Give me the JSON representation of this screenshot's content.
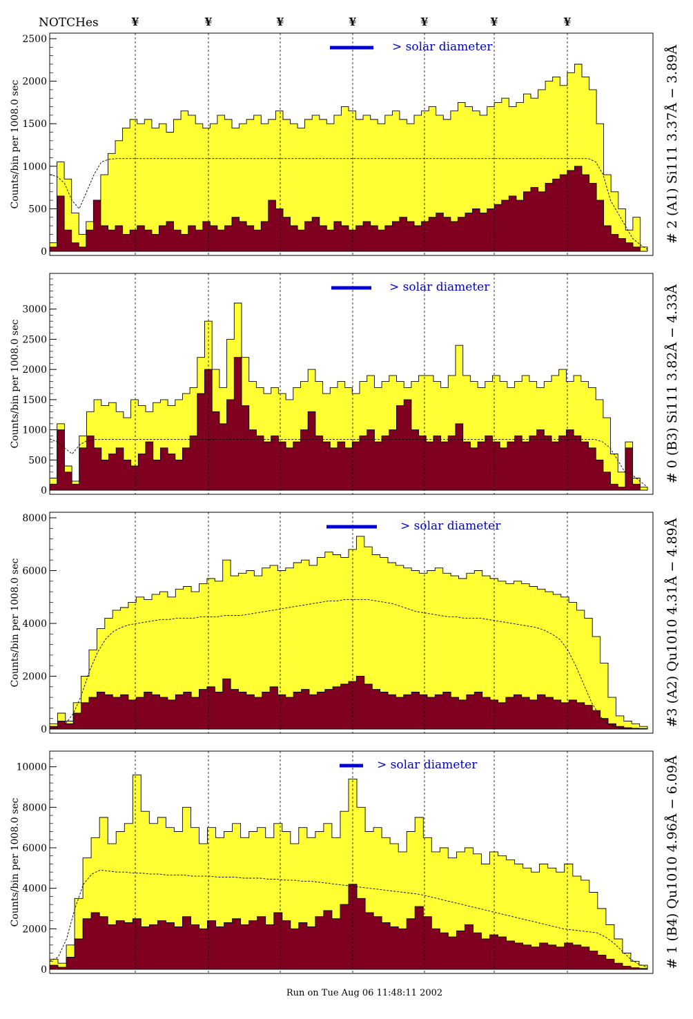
{
  "header": {
    "label": "NOTCHes",
    "notch_glyph": "¥"
  },
  "notches_x": [
    0,
    1,
    2,
    3,
    4,
    5,
    6
  ],
  "footer": {
    "run_text": "Run on Tue Aug 06 11:48:11 2002"
  },
  "colors": {
    "fill_total": "#ffff33",
    "fill_subset": "#800020",
    "annotation": "#0000cc",
    "solar_bar": "#0000dd"
  },
  "chart_data": [
    {
      "type": "area",
      "title": "# 2 (A1) Si111  3.37Å − 3.89Å",
      "ylabel": "Counts/bin per   1008.0 sec",
      "ylim": [
        0,
        2500
      ],
      "yticks": [
        0,
        500,
        1000,
        1500,
        2000,
        2500
      ],
      "solar_label": "> solar diameter",
      "series": [
        {
          "values": [
            100,
            1050,
            850,
            450,
            200,
            350,
            600,
            900,
            1150,
            1300,
            1450,
            1550,
            1500,
            1550,
            1450,
            1500,
            1400,
            1550,
            1650,
            1600,
            1500,
            1450,
            1500,
            1600,
            1550,
            1450,
            1500,
            1550,
            1600,
            1500,
            1550,
            1650,
            1550,
            1500,
            1450,
            1550,
            1600,
            1550,
            1500,
            1600,
            1700,
            1650,
            1550,
            1600,
            1550,
            1500,
            1600,
            1650,
            1550,
            1500,
            1600,
            1650,
            1700,
            1600,
            1550,
            1650,
            1750,
            1700,
            1650,
            1600,
            1700,
            1750,
            1800,
            1700,
            1750,
            1850,
            1800,
            1900,
            2000,
            2050,
            1950,
            2100,
            2200,
            2050,
            1900,
            1500,
            900,
            700,
            500,
            250,
            400,
            50
          ]
        },
        {
          "values": [
            50,
            650,
            250,
            100,
            50,
            250,
            600,
            300,
            250,
            300,
            200,
            250,
            300,
            250,
            200,
            300,
            350,
            250,
            200,
            300,
            250,
            350,
            300,
            250,
            300,
            400,
            350,
            300,
            250,
            350,
            600,
            500,
            400,
            300,
            250,
            350,
            400,
            300,
            250,
            350,
            300,
            250,
            300,
            350,
            300,
            250,
            300,
            350,
            400,
            350,
            300,
            350,
            400,
            450,
            400,
            350,
            400,
            450,
            500,
            450,
            500,
            550,
            600,
            650,
            600,
            700,
            750,
            700,
            800,
            850,
            900,
            950,
            1000,
            900,
            800,
            600,
            300,
            200,
            150,
            100,
            50,
            0
          ]
        }
      ],
      "reference": [
        900,
        880,
        800,
        600,
        500,
        700,
        900,
        1050,
        1080,
        1090,
        1090,
        1090,
        1090,
        1090,
        1090,
        1090,
        1090,
        1090,
        1090,
        1090,
        1090,
        1090,
        1090,
        1090,
        1090,
        1090,
        1090,
        1090,
        1090,
        1090,
        1090,
        1090,
        1090,
        1090,
        1090,
        1090,
        1090,
        1090,
        1090,
        1090,
        1090,
        1090,
        1090,
        1090,
        1090,
        1090,
        1090,
        1090,
        1090,
        1090,
        1090,
        1090,
        1090,
        1090,
        1090,
        1090,
        1090,
        1090,
        1090,
        1090,
        1090,
        1090,
        1090,
        1090,
        1090,
        1090,
        1090,
        1090,
        1090,
        1090,
        1090,
        1090,
        1090,
        1090,
        1050,
        900,
        600,
        450,
        300,
        150,
        80,
        20
      ]
    },
    {
      "type": "area",
      "title": "# 0 (B3) Si111  3.82Å − 4.33Å",
      "ylabel": "Counts/bin per   1008.0 sec",
      "ylim": [
        0,
        3500
      ],
      "yticks": [
        0,
        500,
        1000,
        1500,
        2000,
        2500,
        3000
      ],
      "solar_label": "> solar diameter",
      "series": [
        {
          "values": [
            200,
            1100,
            400,
            150,
            900,
            1300,
            1500,
            1400,
            1450,
            1300,
            1200,
            1500,
            1400,
            1300,
            1450,
            1500,
            1400,
            1500,
            1600,
            1700,
            2200,
            2800,
            2000,
            1700,
            2500,
            3100,
            2200,
            1800,
            1700,
            1600,
            1700,
            1600,
            1500,
            1700,
            1800,
            2000,
            1800,
            1600,
            1700,
            1800,
            1700,
            1600,
            1800,
            1900,
            1700,
            1800,
            1900,
            1800,
            1700,
            1800,
            1900,
            1900,
            1800,
            1700,
            1900,
            2400,
            1900,
            1800,
            1700,
            1800,
            1900,
            1800,
            1700,
            1800,
            1900,
            1800,
            1700,
            1800,
            1900,
            2000,
            1800,
            1900,
            1800,
            1700,
            1500,
            1200,
            600,
            300,
            800,
            200,
            50
          ]
        },
        {
          "values": [
            100,
            1000,
            300,
            100,
            700,
            900,
            700,
            500,
            600,
            700,
            500,
            400,
            600,
            800,
            500,
            700,
            600,
            500,
            700,
            900,
            1600,
            2000,
            1300,
            1100,
            1500,
            2200,
            1400,
            1000,
            900,
            800,
            900,
            800,
            700,
            800,
            1000,
            1300,
            900,
            800,
            700,
            800,
            700,
            800,
            900,
            1000,
            800,
            900,
            1000,
            1400,
            1500,
            1000,
            900,
            800,
            900,
            800,
            900,
            1100,
            800,
            700,
            800,
            900,
            800,
            700,
            800,
            900,
            800,
            900,
            1000,
            900,
            800,
            900,
            1000,
            900,
            800,
            700,
            500,
            300,
            100,
            50,
            700,
            100,
            0
          ]
        }
      ],
      "reference": [
        850,
        800,
        700,
        600,
        750,
        820,
        840,
        840,
        840,
        840,
        840,
        840,
        840,
        840,
        840,
        840,
        840,
        840,
        840,
        840,
        840,
        840,
        840,
        840,
        840,
        840,
        840,
        840,
        840,
        840,
        840,
        840,
        840,
        840,
        840,
        840,
        840,
        840,
        840,
        840,
        840,
        840,
        840,
        840,
        840,
        840,
        840,
        840,
        840,
        840,
        840,
        840,
        840,
        840,
        840,
        840,
        840,
        840,
        840,
        840,
        840,
        840,
        840,
        840,
        840,
        840,
        840,
        840,
        840,
        840,
        840,
        840,
        840,
        840,
        800,
        700,
        500,
        300,
        250,
        150,
        50
      ]
    },
    {
      "type": "area",
      "title": "#3 (A2) Qu1010  4.31Å − 4.89Å",
      "ylabel": "Counts/bin per   1008.0 sec",
      "ylim": [
        0,
        8000
      ],
      "yticks": [
        0,
        2000,
        4000,
        6000,
        8000
      ],
      "solar_label": "> solar diameter",
      "series": [
        {
          "values": [
            200,
            600,
            300,
            1000,
            2000,
            3000,
            3800,
            4200,
            4500,
            4600,
            4800,
            5000,
            4900,
            5100,
            5200,
            5000,
            5300,
            5400,
            5200,
            5500,
            5700,
            5600,
            6400,
            5800,
            5900,
            6000,
            5800,
            6100,
            6200,
            6000,
            6100,
            6300,
            6400,
            6200,
            6500,
            6700,
            6600,
            6500,
            6800,
            7300,
            6900,
            6600,
            6500,
            6300,
            6200,
            6100,
            6000,
            5900,
            6000,
            6100,
            5900,
            5800,
            5700,
            5900,
            6000,
            5800,
            5700,
            5600,
            5500,
            5600,
            5500,
            5400,
            5300,
            5200,
            5100,
            5000,
            4800,
            4500,
            4200,
            3500,
            2500,
            1200,
            500,
            300,
            200,
            100
          ]
        },
        {
          "values": [
            100,
            300,
            200,
            600,
            1000,
            1200,
            1400,
            1300,
            1200,
            1300,
            1100,
            1200,
            1400,
            1300,
            1200,
            1100,
            1300,
            1400,
            1200,
            1500,
            1600,
            1400,
            1900,
            1500,
            1400,
            1300,
            1200,
            1400,
            1600,
            1300,
            1200,
            1400,
            1500,
            1300,
            1400,
            1500,
            1600,
            1700,
            1800,
            2000,
            1700,
            1500,
            1400,
            1300,
            1200,
            1300,
            1400,
            1300,
            1200,
            1300,
            1400,
            1200,
            1100,
            1300,
            1400,
            1200,
            1100,
            1000,
            1200,
            1300,
            1200,
            1100,
            1300,
            1200,
            1100,
            1000,
            1100,
            1000,
            900,
            700,
            400,
            200,
            100,
            50,
            30,
            20
          ]
        }
      ],
      "reference": [
        0,
        50,
        200,
        600,
        1300,
        2200,
        2900,
        3400,
        3700,
        3850,
        3950,
        4000,
        4050,
        4100,
        4150,
        4150,
        4200,
        4200,
        4200,
        4250,
        4250,
        4250,
        4300,
        4300,
        4300,
        4350,
        4400,
        4450,
        4500,
        4550,
        4600,
        4650,
        4700,
        4750,
        4800,
        4850,
        4850,
        4900,
        4900,
        4900,
        4900,
        4850,
        4800,
        4750,
        4650,
        4550,
        4450,
        4400,
        4350,
        4300,
        4250,
        4250,
        4200,
        4200,
        4200,
        4150,
        4100,
        4050,
        4000,
        3950,
        3900,
        3850,
        3750,
        3600,
        3400,
        3000,
        2400,
        1700,
        1000,
        500,
        200,
        80,
        30,
        10,
        5,
        0
      ]
    },
    {
      "type": "area",
      "title": "# 1 (B4) Qu1010 4.96Å − 6.09Å",
      "ylabel": "Counts/bin per   1008.0 sec",
      "ylim": [
        0,
        10500
      ],
      "yticks": [
        0,
        2000,
        4000,
        6000,
        8000,
        10000
      ],
      "solar_label": "> solar diameter",
      "series": [
        {
          "values": [
            500,
            300,
            1200,
            3500,
            5500,
            6500,
            7500,
            6200,
            6800,
            7200,
            9600,
            7800,
            7200,
            7500,
            7000,
            6800,
            8000,
            7000,
            6200,
            7000,
            6500,
            6800,
            7200,
            6500,
            6800,
            7000,
            6500,
            7200,
            6800,
            6200,
            7000,
            6500,
            6800,
            7200,
            6500,
            7800,
            9400,
            8000,
            6800,
            7000,
            6500,
            6200,
            5800,
            6800,
            7500,
            6500,
            5800,
            6000,
            5500,
            5800,
            6000,
            5700,
            5200,
            5800,
            5600,
            5400,
            5200,
            5000,
            4800,
            5200,
            5000,
            4800,
            5200,
            4600,
            4400,
            3800,
            3000,
            2200,
            1500,
            800,
            400,
            200
          ]
        },
        {
          "values": [
            200,
            100,
            600,
            1500,
            2500,
            2800,
            2600,
            2200,
            2400,
            2300,
            2500,
            2100,
            2200,
            2400,
            2300,
            2100,
            2600,
            2200,
            2000,
            2400,
            2100,
            2300,
            2500,
            2200,
            2400,
            2600,
            2200,
            2800,
            2400,
            2000,
            2300,
            2100,
            2600,
            2900,
            2500,
            3200,
            4200,
            3500,
            2800,
            2600,
            2300,
            2100,
            2000,
            2500,
            3100,
            2600,
            2000,
            1800,
            1600,
            1900,
            2200,
            1800,
            1500,
            1700,
            1600,
            1400,
            1300,
            1200,
            1100,
            1300,
            1200,
            1100,
            1300,
            1200,
            1100,
            900,
            700,
            500,
            300,
            150,
            80,
            40
          ]
        }
      ],
      "reference": [
        400,
        600,
        1500,
        3000,
        4200,
        4700,
        4900,
        4850,
        4800,
        4800,
        4750,
        4750,
        4700,
        4700,
        4650,
        4650,
        4650,
        4600,
        4600,
        4600,
        4550,
        4550,
        4550,
        4500,
        4500,
        4500,
        4450,
        4450,
        4400,
        4400,
        4350,
        4350,
        4300,
        4250,
        4200,
        4150,
        4100,
        4050,
        4000,
        3950,
        3900,
        3850,
        3800,
        3750,
        3700,
        3600,
        3500,
        3400,
        3300,
        3200,
        3100,
        3000,
        2900,
        2800,
        2700,
        2600,
        2500,
        2400,
        2300,
        2200,
        2100,
        2000,
        1950,
        1900,
        1850,
        1800,
        1600,
        1300,
        900,
        500,
        250,
        100
      ]
    }
  ]
}
